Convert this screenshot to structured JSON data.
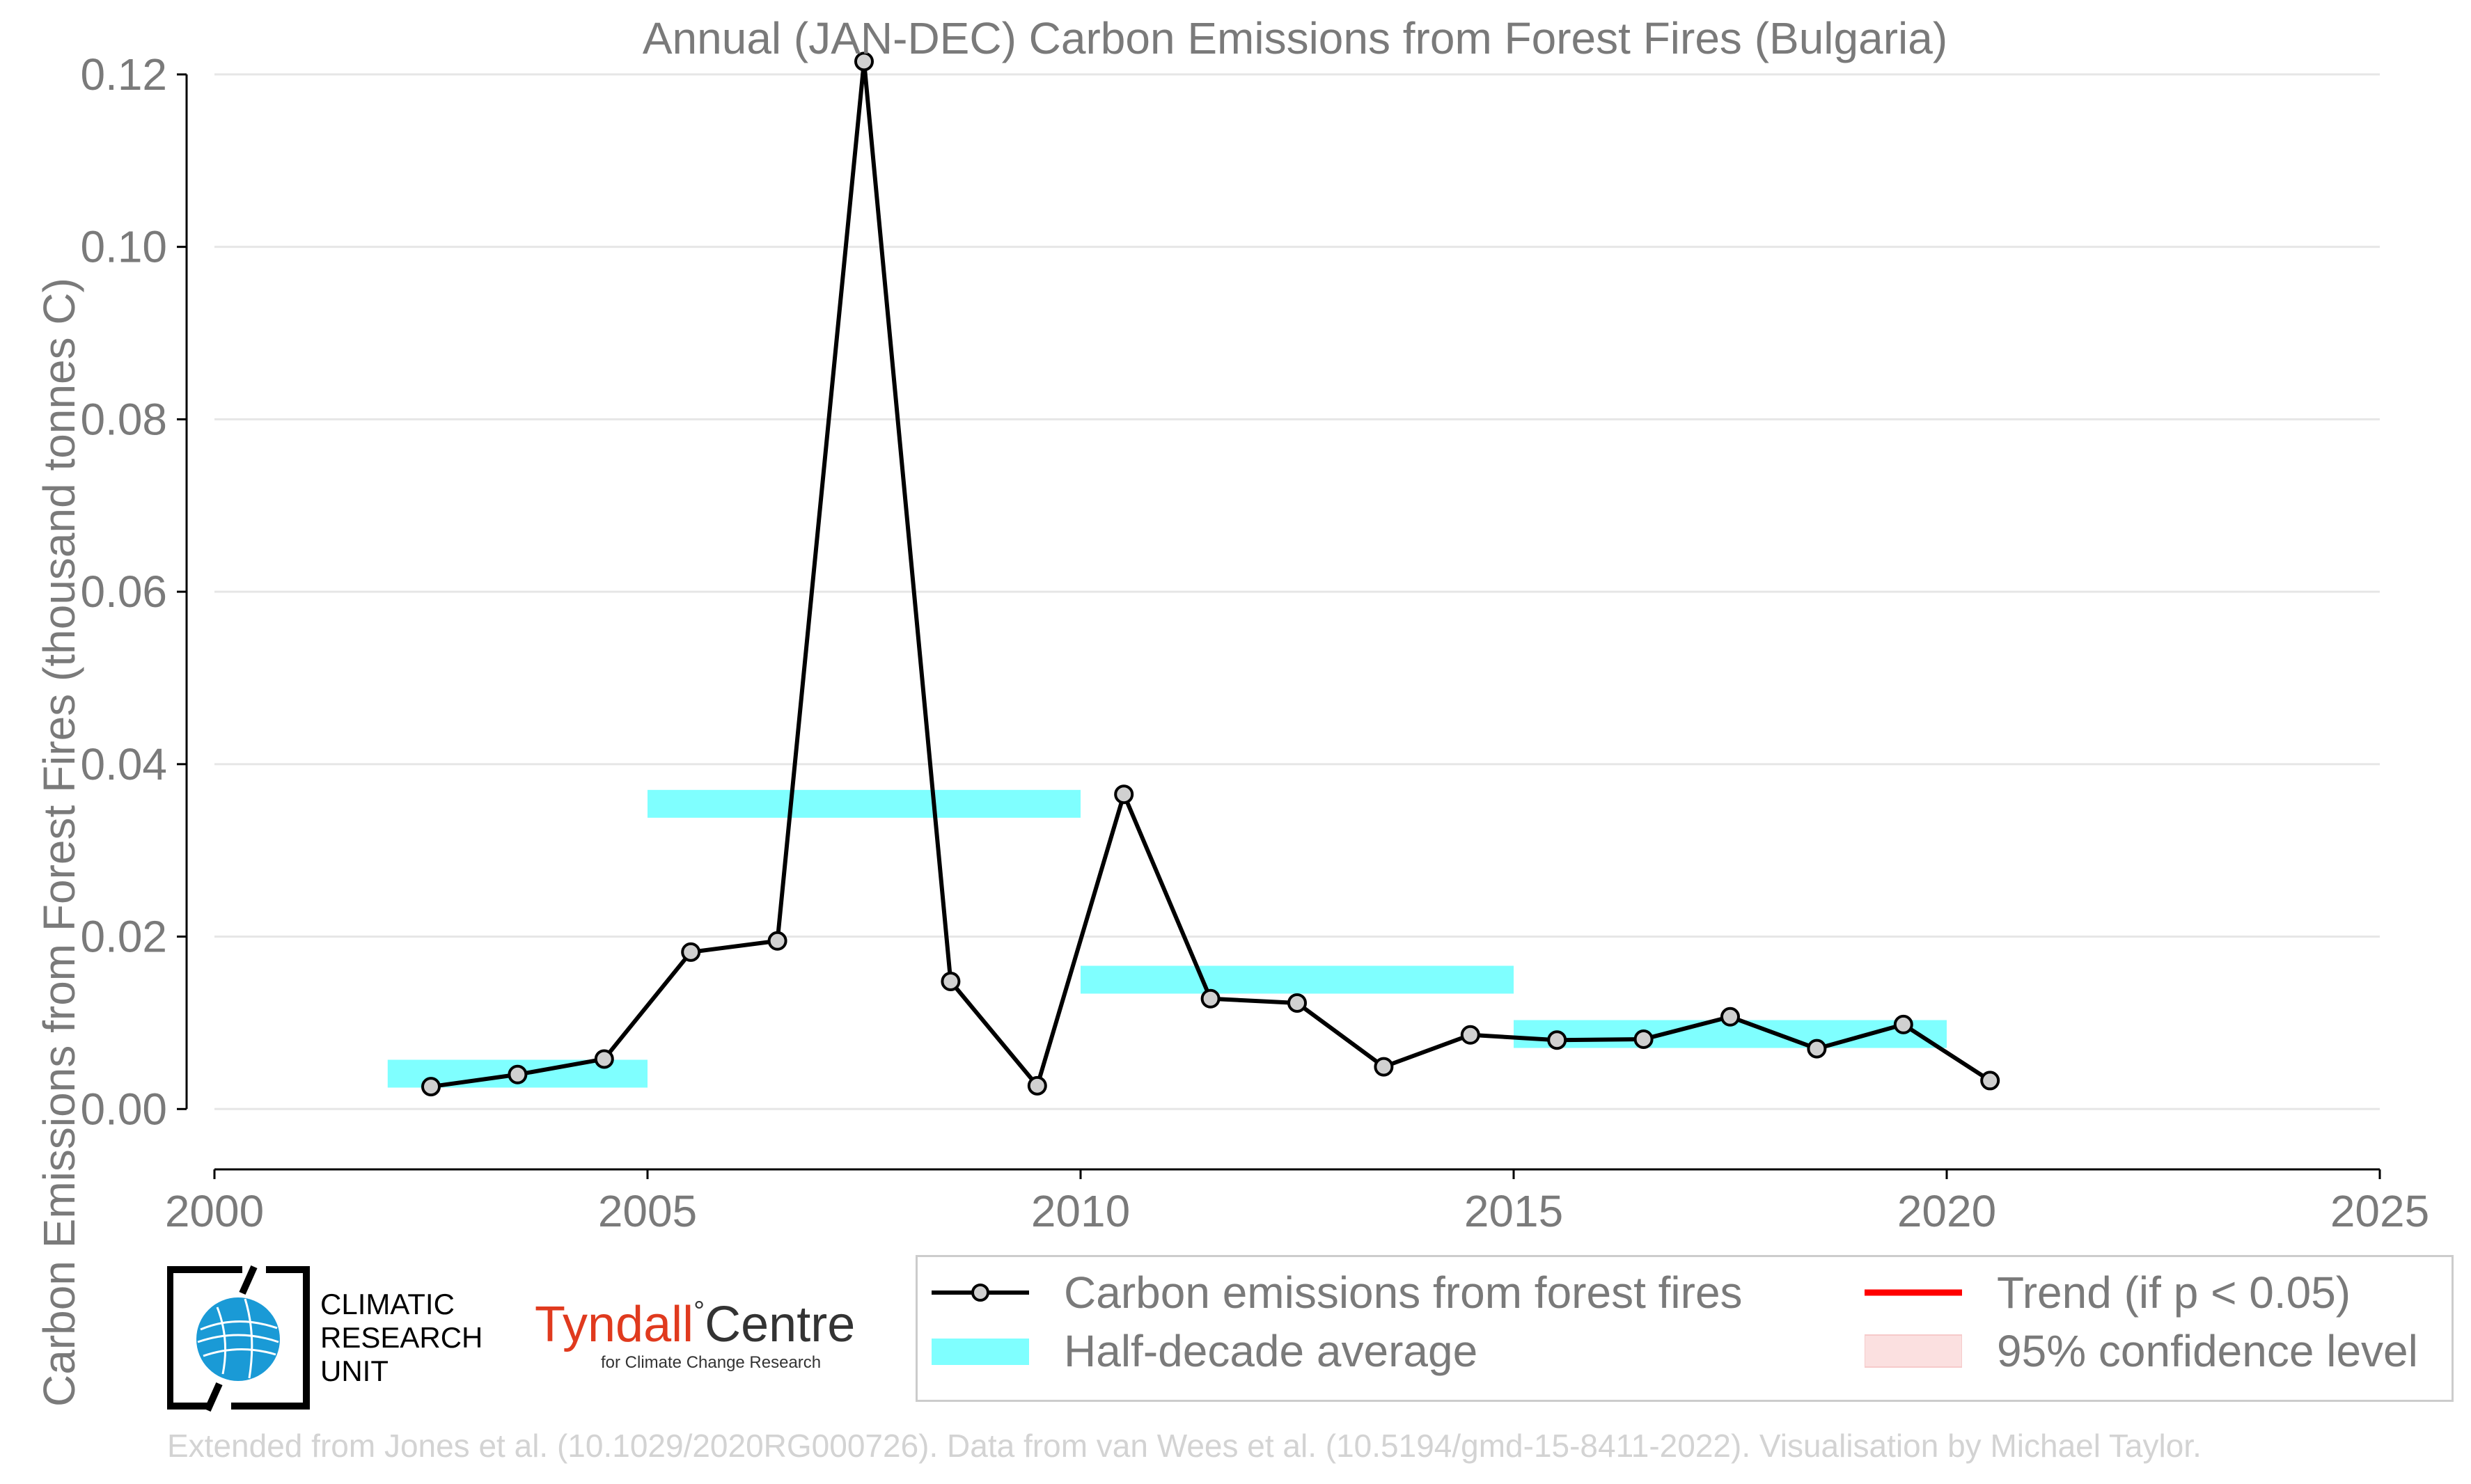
{
  "title": "Annual (JAN-DEC) Carbon Emissions from Forest Fires (Bulgaria)",
  "credit": "Extended from Jones et al. (10.1029/2020RG000726). Data from van Wees et al. (10.5194/gmd-15-8411-2022). Visualisation by Michael Taylor.",
  "logos": {
    "cru_lines": [
      "CLIMATIC",
      "RESEARCH",
      "UNIT"
    ],
    "tyndall_main": "Tyndall",
    "tyndall_degree": "°",
    "tyndall_centre": "Centre",
    "tyndall_sub": "for Climate Change Research"
  },
  "legend": {
    "series": "Carbon emissions from forest fires",
    "half_decade": "Half-decade average",
    "trend": "Trend (if p < 0.05)",
    "confidence": "95% confidence level"
  },
  "colors": {
    "series": "#000000",
    "marker_fill": "#d0d0d0",
    "half_decade": "#7fffff",
    "trend": "#ff0000",
    "confidence": "#fbe0e0",
    "grid": "#e6e6e6",
    "text": "#7a7a7a"
  },
  "chart_data": {
    "type": "line",
    "title": "Annual (JAN-DEC) Carbon Emissions from Forest Fires (Bulgaria)",
    "xlabel": "",
    "ylabel": "Carbon Emissions from Forest Fires (thousand tonnes C)",
    "xlim": [
      2000,
      2025
    ],
    "ylim": [
      -0.007,
      0.125
    ],
    "x_ticks": [
      2000,
      2005,
      2010,
      2015,
      2020,
      2025
    ],
    "y_ticks": [
      0.0,
      0.02,
      0.04,
      0.06,
      0.08,
      0.1,
      0.12
    ],
    "y_tick_labels": [
      "0.00",
      "0.02",
      "0.04",
      "0.06",
      "0.08",
      "0.10",
      "0.12"
    ],
    "grid": "horizontal",
    "legend_position": "bottom-right",
    "series": [
      {
        "name": "Carbon emissions from forest fires",
        "x": [
          2002.5,
          2003.5,
          2004.5,
          2005.5,
          2006.5,
          2007.5,
          2008.5,
          2009.5,
          2010.5,
          2011.5,
          2012.5,
          2013.5,
          2014.5,
          2015.5,
          2016.5,
          2017.5,
          2018.5,
          2019.5,
          2020.5
        ],
        "y": [
          0.0026,
          0.004,
          0.0058,
          0.0182,
          0.0195,
          0.1215,
          0.0148,
          0.0027,
          0.0365,
          0.0128,
          0.0123,
          0.0049,
          0.0086,
          0.008,
          0.0081,
          0.0107,
          0.007,
          0.0098,
          0.0033
        ]
      }
    ],
    "half_decade_averages": [
      {
        "x_start": 2002,
        "x_end": 2005,
        "y": 0.0041
      },
      {
        "x_start": 2005,
        "x_end": 2010,
        "y": 0.0354
      },
      {
        "x_start": 2010,
        "x_end": 2015,
        "y": 0.015
      },
      {
        "x_start": 2015,
        "x_end": 2020,
        "y": 0.0087
      }
    ]
  }
}
